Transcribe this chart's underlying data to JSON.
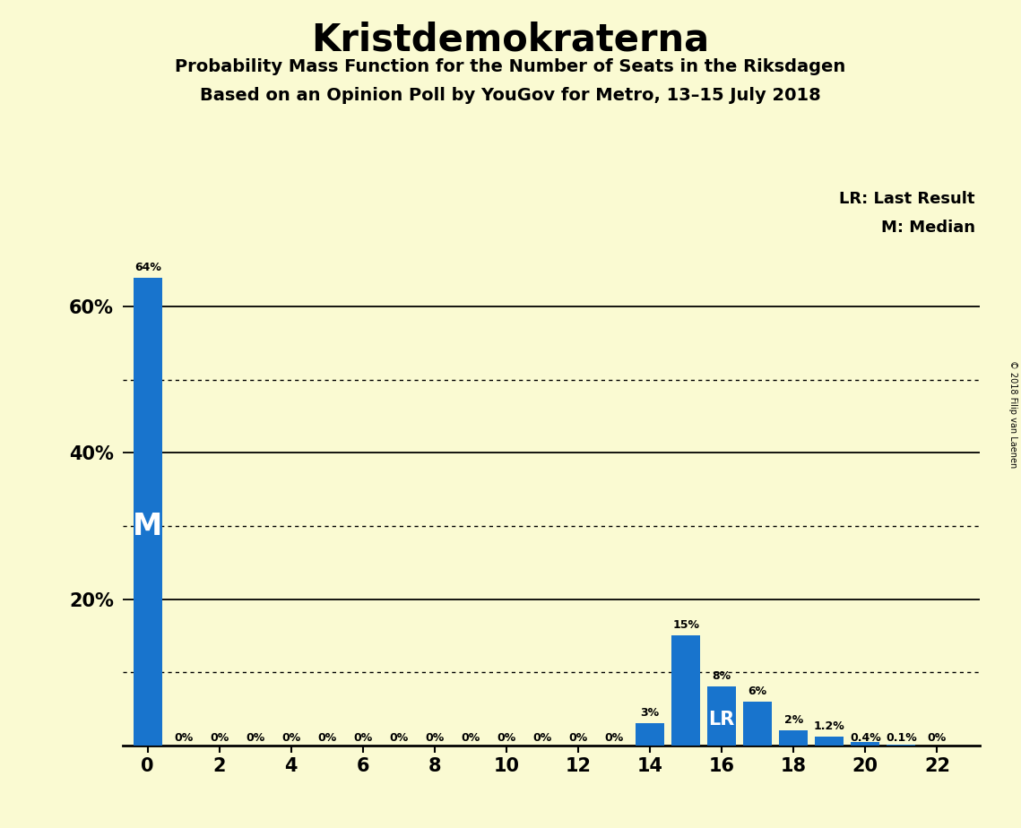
{
  "title": "Kristdemokraterna",
  "subtitle1": "Probability Mass Function for the Number of Seats in the Riksdagen",
  "subtitle2": "Based on an Opinion Poll by YouGov for Metro, 13–15 July 2018",
  "copyright": "© 2018 Filip van Laenen",
  "bar_color": "#1874CD",
  "background_color": "#FAFAD2",
  "seats": [
    0,
    1,
    2,
    3,
    4,
    5,
    6,
    7,
    8,
    9,
    10,
    11,
    12,
    13,
    14,
    15,
    16,
    17,
    18,
    19,
    20,
    21,
    22
  ],
  "probabilities": [
    64,
    0,
    0,
    0,
    0,
    0,
    0,
    0,
    0,
    0,
    0,
    0,
    0,
    0,
    3,
    15,
    8,
    6,
    2,
    1.2,
    0.4,
    0.1,
    0
  ],
  "bar_labels": [
    "64%",
    "0%",
    "0%",
    "0%",
    "0%",
    "0%",
    "0%",
    "0%",
    "0%",
    "0%",
    "0%",
    "0%",
    "0%",
    "0%",
    "3%",
    "15%",
    "8%",
    "6%",
    "2%",
    "1.2%",
    "0.4%",
    "0.1%",
    "0%"
  ],
  "median_seat": 0,
  "lr_seat": 16,
  "legend_lr": "LR: Last Result",
  "legend_m": "M: Median",
  "ylim": [
    0,
    68
  ],
  "solid_lines": [
    20,
    40,
    60
  ],
  "dotted_lines": [
    10,
    30,
    50
  ],
  "ytick_positions": [
    20,
    40,
    60
  ],
  "ytick_labels": [
    "20%",
    "40%",
    "60%"
  ]
}
